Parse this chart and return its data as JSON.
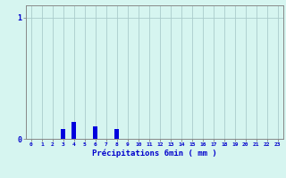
{
  "hours": [
    0,
    1,
    2,
    3,
    4,
    5,
    6,
    7,
    8,
    9,
    10,
    11,
    12,
    13,
    14,
    15,
    16,
    17,
    18,
    19,
    20,
    21,
    22,
    23
  ],
  "values": [
    0,
    0,
    0,
    0.08,
    0.14,
    0.0,
    0.1,
    0.0,
    0.08,
    0,
    0,
    0,
    0,
    0,
    0,
    0,
    0,
    0,
    0,
    0,
    0,
    0,
    0,
    0
  ],
  "bar_color": "#0000dd",
  "bg_color": "#d6f5f0",
  "grid_color": "#aacccc",
  "axis_color": "#888888",
  "xlabel": "Précipitations 6min ( mm )",
  "xlabel_color": "#0000cc",
  "tick_color": "#0000cc",
  "ylim": [
    0,
    1.1
  ],
  "xlim": [
    -0.5,
    23.5
  ],
  "yticks": [
    0,
    1
  ],
  "ytick_labels": [
    "0",
    "1"
  ]
}
